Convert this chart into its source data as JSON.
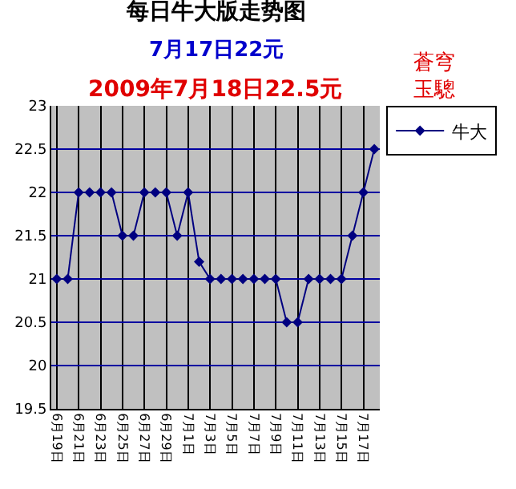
{
  "chart_data": {
    "type": "line",
    "title": "每日牛大版走势图",
    "subtitle": "7月17日22元",
    "annotations": [
      "2009年7月18日22.5元",
      "蒼穹玉驄"
    ],
    "categories": [
      "6月19日",
      null,
      "6月21日",
      null,
      "6月23日",
      null,
      "6月25日",
      null,
      "6月27日",
      null,
      "6月29日",
      null,
      "7月1日",
      null,
      "7月3日",
      null,
      "7月5日",
      null,
      "7月7日",
      null,
      "7月9日",
      null,
      "7月11日",
      null,
      "7月13日",
      null,
      "7月15日",
      null,
      "7月17日",
      null
    ],
    "series": [
      {
        "name": "牛大",
        "color": "#000080",
        "values": [
          21,
          21,
          22,
          22,
          22,
          22,
          21.5,
          21.5,
          22,
          22,
          22,
          21.5,
          22,
          21.2,
          21,
          21,
          21,
          21,
          21,
          21,
          21,
          20.5,
          20.5,
          21,
          21,
          21,
          21,
          21.5,
          22,
          22.5
        ]
      }
    ],
    "ylim": [
      19.5,
      23
    ],
    "yticks": [
      19.5,
      20,
      20.5,
      21,
      21.5,
      22,
      22.5,
      23
    ],
    "grid": true,
    "legend": "top right",
    "marker": "diamond"
  }
}
